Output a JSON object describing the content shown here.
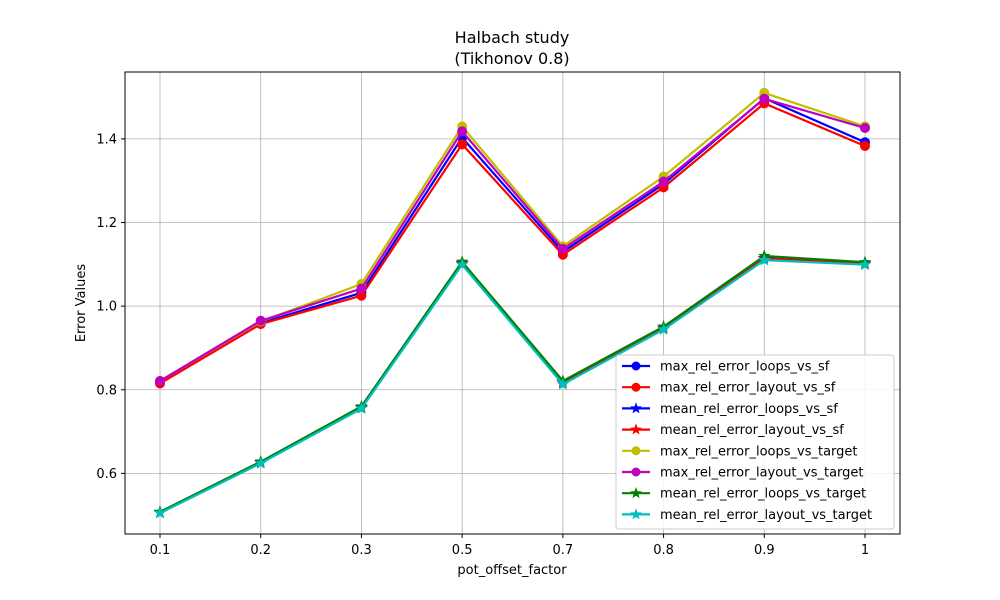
{
  "chart_data": {
    "type": "line",
    "title": "Halbach study",
    "subtitle": "(Tikhonov 0.8)",
    "xlabel": "pot_offset_factor",
    "ylabel": "Error Values",
    "categories": [
      "0.1",
      "0.2",
      "0.3",
      "0.5",
      "0.7",
      "0.8",
      "0.9",
      "1"
    ],
    "ylim": [
      0.455,
      1.56
    ],
    "yticks": [
      "0.6",
      "0.8",
      "1.0",
      "1.2",
      "1.4"
    ],
    "ytick_values": [
      0.6,
      0.8,
      1.0,
      1.2,
      1.4
    ],
    "grid": true,
    "legend_position": "bottom-right",
    "series": [
      {
        "name": "max_rel_error_loops_vs_sf",
        "color": "#0000ff",
        "marker": "circle",
        "values": [
          0.818,
          0.96,
          1.032,
          1.403,
          1.13,
          1.292,
          1.497,
          1.392
        ]
      },
      {
        "name": "max_rel_error_layout_vs_sf",
        "color": "#ff0000",
        "marker": "circle",
        "values": [
          0.815,
          0.957,
          1.025,
          1.387,
          1.123,
          1.284,
          1.485,
          1.383
        ]
      },
      {
        "name": "mean_rel_error_loops_vs_sf",
        "color": "#0000ff",
        "marker": "star",
        "values": [
          0.507,
          0.627,
          0.758,
          1.103,
          0.818,
          0.948,
          1.115,
          1.102
        ]
      },
      {
        "name": "mean_rel_error_layout_vs_sf",
        "color": "#ff0000",
        "marker": "star",
        "values": [
          0.506,
          0.626,
          0.757,
          1.102,
          0.817,
          0.947,
          1.114,
          1.101
        ]
      },
      {
        "name": "max_rel_error_loops_vs_target",
        "color": "#bfbf00",
        "marker": "circle",
        "values": [
          0.821,
          0.963,
          1.053,
          1.43,
          1.143,
          1.31,
          1.51,
          1.43
        ]
      },
      {
        "name": "max_rel_error_layout_vs_target",
        "color": "#bf00bf",
        "marker": "circle",
        "values": [
          0.821,
          0.965,
          1.042,
          1.418,
          1.137,
          1.298,
          1.496,
          1.426
        ]
      },
      {
        "name": "mean_rel_error_loops_vs_target",
        "color": "#008000",
        "marker": "star",
        "values": [
          0.508,
          0.628,
          0.76,
          1.106,
          0.821,
          0.951,
          1.12,
          1.105
        ]
      },
      {
        "name": "mean_rel_error_layout_vs_target",
        "color": "#00bfbf",
        "marker": "star",
        "values": [
          0.505,
          0.624,
          0.755,
          1.099,
          0.813,
          0.944,
          1.11,
          1.099
        ]
      }
    ]
  }
}
